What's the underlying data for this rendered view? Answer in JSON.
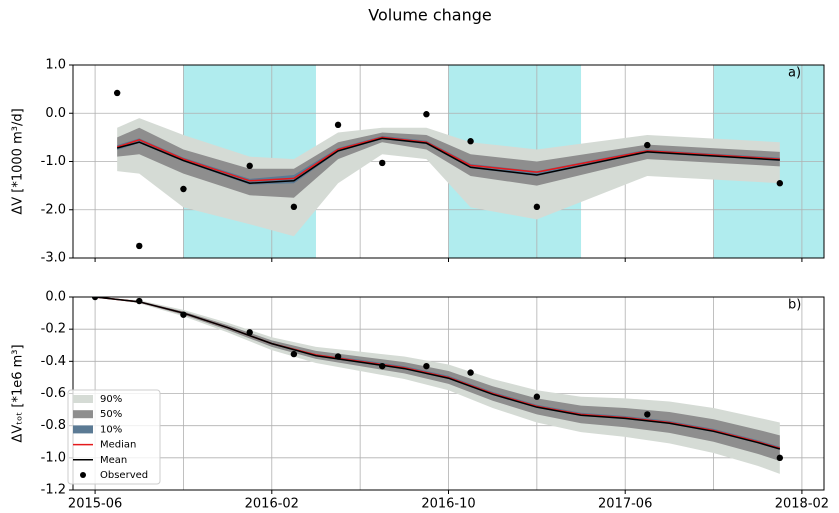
{
  "chart_data": [
    {
      "type": "band-line",
      "title": "Volume change",
      "annotation": "a)",
      "ylabel": "ΔV [*1000 m³/d]",
      "xlim": [
        "2015-05",
        "2018-03"
      ],
      "ylim": [
        -3.0,
        1.0
      ],
      "yticks": [
        {
          "value": 1.0,
          "label": "1.0"
        },
        {
          "value": 0.0,
          "label": "0.0"
        },
        {
          "value": -1.0,
          "label": "-1.0"
        },
        {
          "value": -2.0,
          "label": "-2.0"
        },
        {
          "value": -3.0,
          "label": "-3.0"
        }
      ],
      "grid": true,
      "span_color": "#b0ecee",
      "spans": [
        {
          "start": "2015-10",
          "end": "2016-04"
        },
        {
          "start": "2016-10",
          "end": "2017-04"
        },
        {
          "start": "2017-10",
          "end": "2018-03"
        }
      ],
      "x": [
        "2015-07",
        "2015-08",
        "2015-10",
        "2016-01",
        "2016-03",
        "2016-05",
        "2016-07",
        "2016-09",
        "2016-11",
        "2017-02",
        "2017-07",
        "2018-01"
      ],
      "series": [
        {
          "kind": "band",
          "color": "#d5dbd5",
          "lower": [
            -1.2,
            -1.25,
            -1.95,
            -2.3,
            -2.55,
            -1.45,
            -0.85,
            -0.95,
            -1.95,
            -2.2,
            -1.3,
            -1.45
          ],
          "upper": [
            -0.3,
            -0.1,
            -0.45,
            -0.9,
            -0.95,
            -0.4,
            -0.3,
            -0.3,
            -0.6,
            -0.75,
            -0.45,
            -0.6
          ]
        },
        {
          "kind": "band",
          "color": "#8e8e8e",
          "lower": [
            -0.9,
            -0.85,
            -1.25,
            -1.7,
            -1.75,
            -0.95,
            -0.6,
            -0.75,
            -1.3,
            -1.5,
            -0.95,
            -1.1
          ],
          "upper": [
            -0.5,
            -0.3,
            -0.75,
            -1.15,
            -1.15,
            -0.6,
            -0.4,
            -0.45,
            -0.85,
            -1.0,
            -0.65,
            -0.8
          ]
        },
        {
          "kind": "band",
          "color": "#5b7a94",
          "lower": [
            -0.76,
            -0.62,
            -1.0,
            -1.48,
            -1.45,
            -0.8,
            -0.54,
            -0.64,
            -1.14,
            -1.3,
            -0.82,
            -0.99
          ],
          "upper": [
            -0.66,
            -0.52,
            -0.92,
            -1.36,
            -1.28,
            -0.72,
            -0.47,
            -0.57,
            -1.05,
            -1.2,
            -0.75,
            -0.92
          ]
        },
        {
          "kind": "line",
          "color": "#e41a1c",
          "values": [
            -0.7,
            -0.55,
            -0.95,
            -1.4,
            -1.35,
            -0.75,
            -0.5,
            -0.6,
            -1.08,
            -1.22,
            -0.78,
            -0.95
          ]
        },
        {
          "kind": "line",
          "color": "#000000",
          "values": [
            -0.72,
            -0.6,
            -0.98,
            -1.45,
            -1.4,
            -0.78,
            -0.52,
            -0.62,
            -1.12,
            -1.28,
            -0.8,
            -0.97
          ]
        },
        {
          "kind": "points",
          "color": "#000000",
          "values": [
            0.42,
            -2.75,
            -1.57,
            -1.09,
            -1.94,
            -0.24,
            -1.03,
            -0.02,
            -0.58,
            -1.94,
            -0.66,
            -1.45
          ]
        }
      ]
    },
    {
      "type": "band-line",
      "annotation": "b)",
      "ylabel": "ΔVₜₒₜ [*1e6 m³]",
      "xlim": [
        "2015-05",
        "2018-03"
      ],
      "xticks": [
        "2015-06",
        "2016-02",
        "2016-10",
        "2017-06",
        "2018-02"
      ],
      "xminor_grid": [
        "2015-10",
        "2016-06",
        "2017-02",
        "2017-10"
      ],
      "ylim": [
        -1.2,
        0.0
      ],
      "yticks": [
        {
          "value": 0.0,
          "label": "0.0"
        },
        {
          "value": -0.2,
          "label": "-0.2"
        },
        {
          "value": -0.4,
          "label": "-0.4"
        },
        {
          "value": -0.6,
          "label": "-0.6"
        },
        {
          "value": -0.8,
          "label": "-0.8"
        },
        {
          "value": -1.0,
          "label": "-1.0"
        },
        {
          "value": -1.2,
          "label": "-1.2"
        }
      ],
      "grid": true,
      "legend": "lower left",
      "x": [
        "2015-06",
        "2015-08",
        "2015-10",
        "2015-12",
        "2016-02",
        "2016-04",
        "2016-06",
        "2016-08",
        "2016-10",
        "2016-12",
        "2017-02",
        "2017-04",
        "2017-06",
        "2017-08",
        "2017-10",
        "2017-12",
        "2018-01"
      ],
      "series": [
        {
          "name": "90%",
          "kind": "band",
          "color": "#d5dbd5",
          "lower": [
            0,
            -0.04,
            -0.12,
            -0.22,
            -0.33,
            -0.41,
            -0.46,
            -0.51,
            -0.58,
            -0.69,
            -0.78,
            -0.84,
            -0.87,
            -0.91,
            -0.97,
            -1.05,
            -1.1
          ],
          "upper": [
            0,
            -0.02,
            -0.08,
            -0.16,
            -0.25,
            -0.31,
            -0.34,
            -0.37,
            -0.42,
            -0.51,
            -0.58,
            -0.62,
            -0.63,
            -0.65,
            -0.69,
            -0.75,
            -0.78
          ]
        },
        {
          "name": "50%",
          "kind": "band",
          "color": "#8e8e8e",
          "lower": [
            0,
            -0.035,
            -0.11,
            -0.205,
            -0.31,
            -0.385,
            -0.43,
            -0.475,
            -0.54,
            -0.645,
            -0.73,
            -0.785,
            -0.81,
            -0.845,
            -0.9,
            -0.975,
            -1.02
          ],
          "upper": [
            0,
            -0.025,
            -0.09,
            -0.175,
            -0.27,
            -0.335,
            -0.37,
            -0.405,
            -0.46,
            -0.555,
            -0.63,
            -0.675,
            -0.69,
            -0.715,
            -0.76,
            -0.825,
            -0.86
          ]
        },
        {
          "name": "10%",
          "kind": "band",
          "color": "#5b7a94",
          "lower": [
            0,
            -0.035,
            -0.105,
            -0.195,
            -0.295,
            -0.365,
            -0.41,
            -0.45,
            -0.51,
            -0.61,
            -0.69,
            -0.74,
            -0.76,
            -0.79,
            -0.84,
            -0.91,
            -0.95
          ],
          "upper": [
            0,
            -0.025,
            -0.095,
            -0.185,
            -0.285,
            -0.355,
            -0.39,
            -0.43,
            -0.49,
            -0.59,
            -0.67,
            -0.72,
            -0.74,
            -0.77,
            -0.82,
            -0.89,
            -0.93
          ]
        },
        {
          "name": "Median",
          "kind": "line",
          "color": "#e41a1c",
          "values": [
            0,
            -0.03,
            -0.1,
            -0.19,
            -0.29,
            -0.36,
            -0.4,
            -0.44,
            -0.5,
            -0.6,
            -0.68,
            -0.73,
            -0.75,
            -0.78,
            -0.83,
            -0.9,
            -0.94
          ]
        },
        {
          "name": "Mean",
          "kind": "line",
          "color": "#000000",
          "values": [
            0,
            -0.03,
            -0.1,
            -0.19,
            -0.29,
            -0.365,
            -0.405,
            -0.445,
            -0.505,
            -0.605,
            -0.685,
            -0.735,
            -0.755,
            -0.785,
            -0.835,
            -0.905,
            -0.945
          ]
        },
        {
          "name": "Observed",
          "kind": "points",
          "color": "#000000",
          "x": [
            "2015-06",
            "2015-08",
            "2015-10",
            "2016-01",
            "2016-03",
            "2016-05",
            "2016-07",
            "2016-09",
            "2016-11",
            "2017-02",
            "2017-07",
            "2018-01"
          ],
          "values": [
            0,
            -0.025,
            -0.11,
            -0.22,
            -0.355,
            -0.37,
            -0.43,
            -0.43,
            -0.47,
            -0.62,
            -0.73,
            -1.0
          ]
        }
      ]
    }
  ]
}
